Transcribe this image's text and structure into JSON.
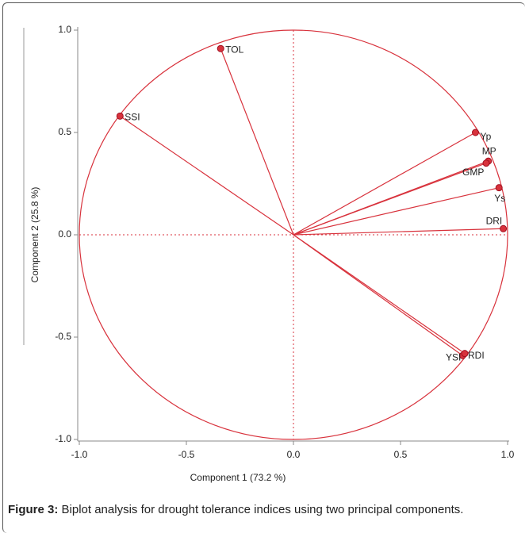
{
  "chart_data": {
    "type": "scatter",
    "xlabel": "Component 1  (73.2 %)",
    "ylabel": "Component 2  (25.8 %)",
    "labels": [
      "TOL",
      "SSI",
      "Yp",
      "MP",
      "GMP",
      "Ys",
      "DRI",
      "YSI",
      "RDI"
    ],
    "x": [
      -0.34,
      -0.81,
      0.85,
      0.91,
      0.9,
      0.96,
      0.98,
      0.79,
      0.8
    ],
    "values": [
      0.91,
      0.58,
      0.5,
      0.36,
      0.35,
      0.23,
      0.03,
      -0.59,
      -0.58
    ],
    "color": "#d8323c",
    "xlim": [
      -1,
      1
    ],
    "ylim": [
      -1,
      1
    ],
    "xticks": [
      {
        "value": -1,
        "label": "-1.0"
      },
      {
        "value": -0.5,
        "label": "-0.5"
      },
      {
        "value": 0,
        "label": "0.0"
      },
      {
        "value": 0.5,
        "label": "0.5"
      },
      {
        "value": 1,
        "label": "1.0"
      }
    ],
    "yticks": [
      {
        "value": -1,
        "label": "-1.0"
      },
      {
        "value": -0.5,
        "label": "-0.5"
      },
      {
        "value": 0,
        "label": "0.0"
      },
      {
        "value": 0.5,
        "label": "0.5"
      },
      {
        "value": 1,
        "label": "1.0"
      }
    ]
  },
  "caption_label": "Figure 3:",
  "caption": "Biplot analysis for drought tolerance indices using two principal components."
}
